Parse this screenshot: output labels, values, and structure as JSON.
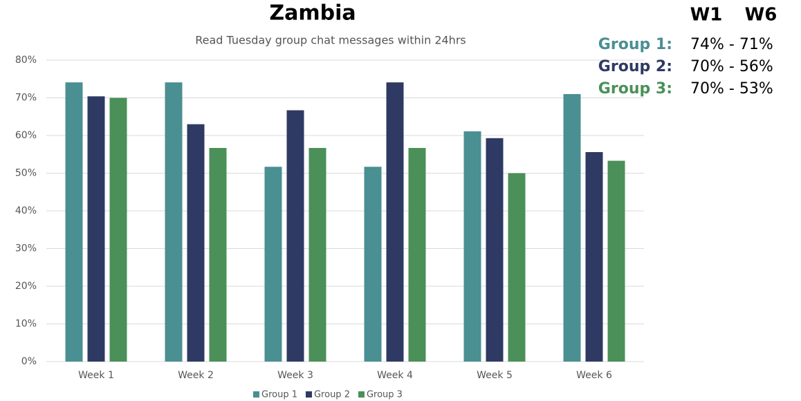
{
  "chart_data": {
    "type": "bar",
    "title": "Zambia",
    "subtitle": "Read Tuesday group chat messages within 24hrs",
    "categories": [
      "Week 1",
      "Week 2",
      "Week 3",
      "Week 4",
      "Week 5",
      "Week 6"
    ],
    "series": [
      {
        "name": "Group 1",
        "color": "#4a8f92",
        "values": [
          74.1,
          74.1,
          51.7,
          51.7,
          61.1,
          71.0
        ]
      },
      {
        "name": "Group 2",
        "color": "#2e3a63",
        "values": [
          70.4,
          63.0,
          66.7,
          74.1,
          59.3,
          55.6
        ]
      },
      {
        "name": "Group 3",
        "color": "#4a9058",
        "values": [
          70.0,
          56.7,
          56.7,
          56.7,
          50.0,
          53.3
        ]
      }
    ],
    "ylim": [
      0,
      80
    ],
    "yticks": [
      {
        "value": 0,
        "label": "0%"
      },
      {
        "value": 10,
        "label": "10%"
      },
      {
        "value": 20,
        "label": "20%"
      },
      {
        "value": 30,
        "label": "30%"
      },
      {
        "value": 40,
        "label": "40%"
      },
      {
        "value": 50,
        "label": "50%"
      },
      {
        "value": 60,
        "label": "60%"
      },
      {
        "value": 70,
        "label": "70%"
      },
      {
        "value": 80,
        "label": "80%"
      }
    ],
    "grid": true,
    "legend": "bottom",
    "annotation": {
      "header": [
        "W1",
        "W6"
      ],
      "rows": [
        {
          "label": "Group 1:",
          "text": "74% - 71%",
          "color": "#4a8f92"
        },
        {
          "label": "Group 2:",
          "text": "70% - 56%",
          "color": "#2e3a63"
        },
        {
          "label": "Group 3:",
          "text": "70% - 53%",
          "color": "#4a9058"
        }
      ]
    }
  }
}
